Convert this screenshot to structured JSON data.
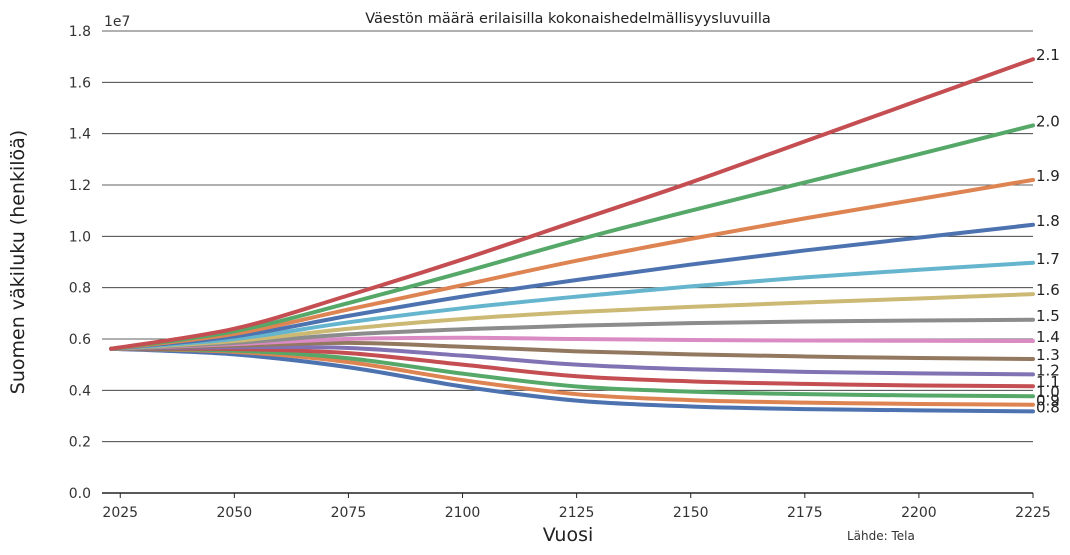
{
  "chart_data": {
    "type": "line",
    "title": "Väestön määrä erilaisilla kokonaishedelmällisyysluvuilla",
    "xlabel": "Vuosi",
    "ylabel": "Suomen väkiluku (henkilöä)",
    "y_offset_label": "1e7",
    "source": "Lähde: Tela",
    "xlim": [
      2021,
      2225
    ],
    "ylim": [
      0,
      1.8
    ],
    "x_ticks": [
      "2025",
      "2050",
      "2075",
      "2100",
      "2125",
      "2150",
      "2175",
      "2200",
      "2225"
    ],
    "y_ticks": [
      "0.0",
      "0.2",
      "0.4",
      "0.6",
      "0.8",
      "1.0",
      "1.2",
      "1.4",
      "1.6",
      "1.8"
    ],
    "grid": "horizontal",
    "x": [
      2023,
      2050,
      2075,
      2100,
      2125,
      2150,
      2175,
      2200,
      2225
    ],
    "series": [
      {
        "name": "2.1",
        "color": "#c44e52",
        "values": [
          0.562,
          0.64,
          0.77,
          0.91,
          1.06,
          1.21,
          1.37,
          1.53,
          1.69
        ]
      },
      {
        "name": "2.0",
        "color": "#55a868",
        "values": [
          0.562,
          0.63,
          0.74,
          0.86,
          0.985,
          1.1,
          1.21,
          1.32,
          1.432
        ]
      },
      {
        "name": "1.9",
        "color": "#dd8452",
        "values": [
          0.562,
          0.62,
          0.715,
          0.81,
          0.905,
          0.99,
          1.07,
          1.145,
          1.22
        ]
      },
      {
        "name": "1.8",
        "color": "#4c72b0",
        "values": [
          0.562,
          0.61,
          0.69,
          0.765,
          0.83,
          0.89,
          0.945,
          0.995,
          1.045
        ]
      },
      {
        "name": "1.7",
        "color": "#64b5cd",
        "values": [
          0.562,
          0.6,
          0.665,
          0.72,
          0.765,
          0.805,
          0.84,
          0.87,
          0.897
        ]
      },
      {
        "name": "1.6",
        "color": "#ccb974",
        "values": [
          0.562,
          0.592,
          0.64,
          0.678,
          0.705,
          0.725,
          0.742,
          0.758,
          0.775
        ]
      },
      {
        "name": "1.5",
        "color": "#8c8c8c",
        "values": [
          0.562,
          0.585,
          0.618,
          0.638,
          0.652,
          0.662,
          0.668,
          0.672,
          0.675
        ]
      },
      {
        "name": "1.4",
        "color": "#da8bc3",
        "values": [
          0.562,
          0.58,
          0.6,
          0.605,
          0.6,
          0.596,
          0.594,
          0.593,
          0.592
        ]
      },
      {
        "name": "1.3",
        "color": "#937860",
        "values": [
          0.562,
          0.574,
          0.585,
          0.57,
          0.552,
          0.54,
          0.532,
          0.526,
          0.522
        ]
      },
      {
        "name": "1.2",
        "color": "#8172b3",
        "values": [
          0.562,
          0.568,
          0.565,
          0.535,
          0.5,
          0.482,
          0.472,
          0.466,
          0.462
        ]
      },
      {
        "name": "1.1",
        "color": "#c44e52",
        "values": [
          0.562,
          0.561,
          0.545,
          0.5,
          0.455,
          0.435,
          0.425,
          0.419,
          0.416
        ]
      },
      {
        "name": "1.0",
        "color": "#55a868",
        "values": [
          0.562,
          0.555,
          0.525,
          0.465,
          0.415,
          0.395,
          0.385,
          0.38,
          0.377
        ]
      },
      {
        "name": "0.9",
        "color": "#dd8452",
        "values": [
          0.562,
          0.55,
          0.51,
          0.44,
          0.385,
          0.362,
          0.352,
          0.347,
          0.344
        ]
      },
      {
        "name": "0.8",
        "color": "#4c72b0",
        "values": [
          0.562,
          0.54,
          0.49,
          0.415,
          0.36,
          0.337,
          0.327,
          0.322,
          0.318
        ]
      }
    ]
  }
}
